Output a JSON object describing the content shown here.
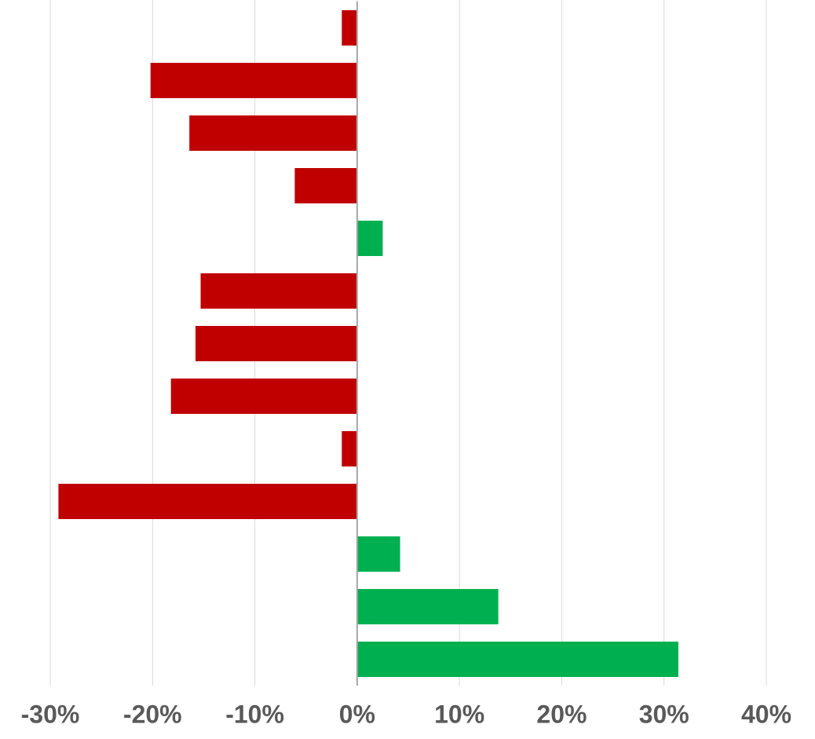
{
  "chart_data": {
    "type": "barh",
    "categories": [
      null,
      null,
      null,
      null,
      null,
      null,
      null,
      null,
      null,
      null,
      null,
      null,
      null
    ],
    "values": [
      -1.5,
      -20.2,
      -16.4,
      -6.1,
      2.5,
      -15.3,
      -15.8,
      -18.2,
      -1.5,
      -29.2,
      4.2,
      13.8,
      31.4
    ],
    "positive_color": "#00b050",
    "negative_color": "#c00000",
    "xlim": [
      -30,
      40
    ],
    "xticks": [
      {
        "value": -30,
        "label": "-30%"
      },
      {
        "value": -20,
        "label": "-20%"
      },
      {
        "value": -10,
        "label": "-10%"
      },
      {
        "value": 0,
        "label": "0%"
      },
      {
        "value": 10,
        "label": "10%"
      },
      {
        "value": 20,
        "label": "20%"
      },
      {
        "value": 30,
        "label": "30%"
      },
      {
        "value": 40,
        "label": "40%"
      }
    ],
    "grid": true
  }
}
